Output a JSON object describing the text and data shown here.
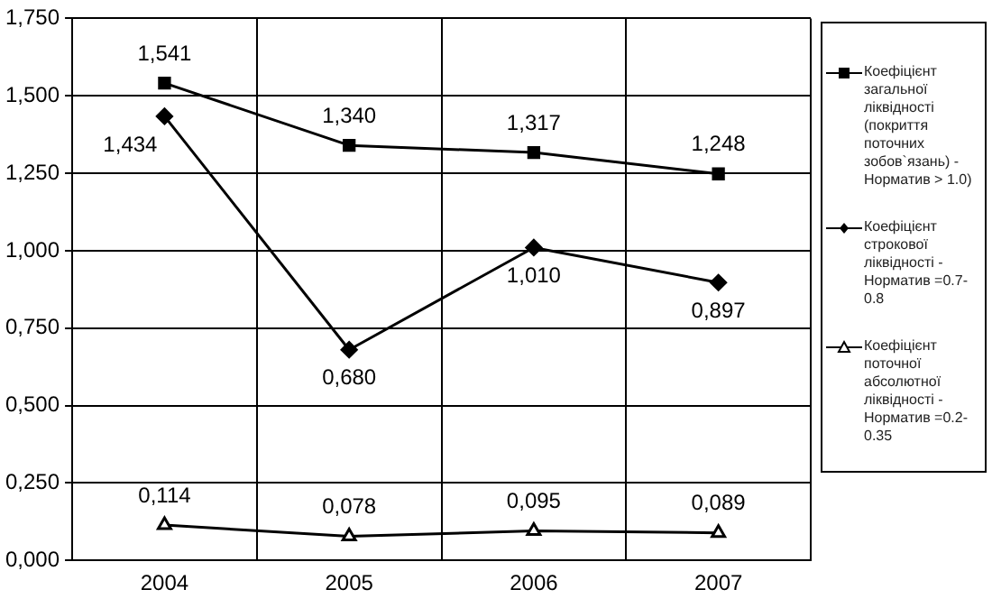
{
  "chart_data": {
    "type": "line",
    "categories": [
      "2004",
      "2005",
      "2006",
      "2007"
    ],
    "series": [
      {
        "name": "Коефіцієнт загальної ліквідності (покриття поточних зобов`язань) - Норматив > 1.0)",
        "color": "#000000",
        "marker": "square",
        "values": [
          1.541,
          1.34,
          1.317,
          1.248
        ],
        "value_labels": [
          "1,541",
          "1,340",
          "1,317",
          "1,248"
        ]
      },
      {
        "name": "Коефіцієнт строкової ліквідності - Норматив =0.7-0.8",
        "color": "#000000",
        "marker": "diamond",
        "values": [
          1.434,
          0.68,
          1.01,
          0.897
        ],
        "value_labels": [
          "1,434",
          "0,680",
          "1,010",
          "0,897"
        ]
      },
      {
        "name": "Коефіцієнт поточної абсолютної ліквідності - Норматив =0.2-0.35",
        "color": "#000000",
        "marker": "triangle",
        "values": [
          0.114,
          0.078,
          0.095,
          0.089
        ],
        "value_labels": [
          "0,114",
          "0,078",
          "0,095",
          "0,089"
        ]
      }
    ],
    "ylim": [
      0,
      1.75
    ],
    "yticks": [
      {
        "value": 0,
        "label": "0,000"
      },
      {
        "value": 0.25,
        "label": "0,250"
      },
      {
        "value": 0.5,
        "label": "0,500"
      },
      {
        "value": 0.75,
        "label": "0,750"
      },
      {
        "value": 1,
        "label": "1,000"
      },
      {
        "value": 1.25,
        "label": "1,250"
      },
      {
        "value": 1.5,
        "label": "1,500"
      },
      {
        "value": 1.75,
        "label": "1,750"
      }
    ],
    "grid": true,
    "legend": "right"
  }
}
